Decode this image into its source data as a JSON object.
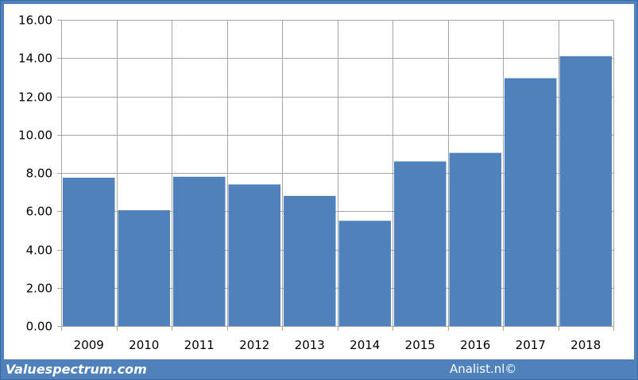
{
  "chart_data": {
    "type": "bar",
    "categories": [
      "2009",
      "2010",
      "2011",
      "2012",
      "2013",
      "2014",
      "2015",
      "2016",
      "2017",
      "2018"
    ],
    "values": [
      7.75,
      6.05,
      7.8,
      7.4,
      6.8,
      5.5,
      8.6,
      9.05,
      12.95,
      14.1
    ],
    "title": "",
    "xlabel": "",
    "ylabel": "",
    "ylim": [
      0,
      16
    ],
    "yticks": [
      "0.00",
      "2.00",
      "4.00",
      "6.00",
      "8.00",
      "10.00",
      "12.00",
      "14.00",
      "16.00"
    ],
    "grid": "vertical and horizontal",
    "legend": "none",
    "bar_color": "#4f81bd"
  },
  "footer": {
    "source_left": "Valuespectrum.com",
    "source_right": "Analist.nl©"
  },
  "colors": {
    "frame": "#4f81bd",
    "grid": "#a6a6a6",
    "panel": "#ffffff"
  }
}
